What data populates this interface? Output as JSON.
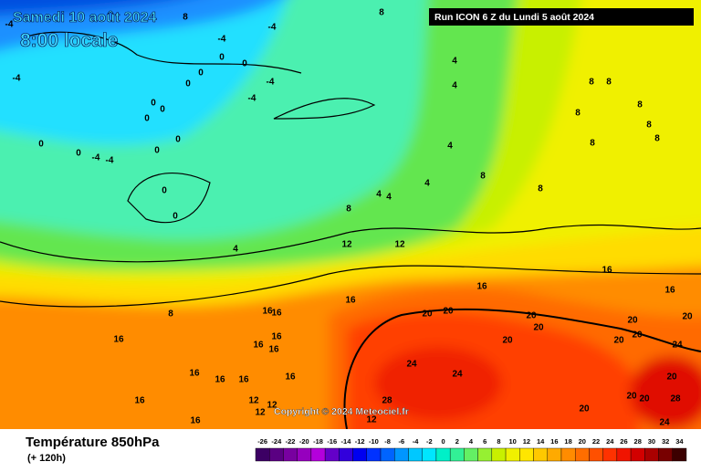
{
  "header": {
    "date": "Samedi 10 août 2024",
    "time": "8:00 locale",
    "run": "Run ICON 6 Z du Lundi 5 août 2024",
    "copyright": "Copyright © 2024 Meteociel.fr"
  },
  "legend": {
    "title": "Température 850hPa",
    "lead": "(+ 120h)",
    "labels": [
      -26,
      -24,
      -22,
      -20,
      -18,
      -16,
      -14,
      -12,
      -10,
      -8,
      -6,
      -4,
      -2,
      0,
      2,
      4,
      6,
      8,
      10,
      12,
      14,
      16,
      18,
      20,
      22,
      24,
      26,
      28,
      30,
      32,
      34
    ],
    "colors": [
      "#3c0064",
      "#5a0082",
      "#7800a0",
      "#9600be",
      "#b400dc",
      "#6400c8",
      "#3200dc",
      "#0000f0",
      "#0032ff",
      "#0064ff",
      "#0096ff",
      "#00c8ff",
      "#00e6ff",
      "#00f0c8",
      "#32f096",
      "#64f064",
      "#96f032",
      "#c8f000",
      "#f0f000",
      "#ffe600",
      "#ffc800",
      "#ffaa00",
      "#ff8c00",
      "#ff6e00",
      "#ff5000",
      "#ff3200",
      "#f01400",
      "#d20000",
      "#aa0000",
      "#780000",
      "#3c0000"
    ]
  },
  "contour_labels": [
    8,
    8,
    -4,
    -4,
    -4,
    -4,
    -4,
    -4,
    0,
    0,
    0,
    0,
    0,
    0,
    0,
    0,
    0,
    0,
    0,
    0,
    0,
    -4,
    -4,
    4,
    4,
    4,
    4,
    4,
    4,
    4,
    8,
    8,
    8,
    8,
    8,
    8,
    8,
    8,
    8,
    8,
    8,
    12,
    12,
    16,
    16,
    16,
    16,
    16,
    16,
    16,
    16,
    16,
    16,
    16,
    16,
    16,
    16,
    16,
    16,
    20,
    20,
    20,
    20,
    20,
    20,
    20,
    20,
    20,
    20,
    20,
    20,
    20,
    24,
    24,
    24,
    24,
    28,
    28,
    12,
    12,
    12,
    12
  ]
}
